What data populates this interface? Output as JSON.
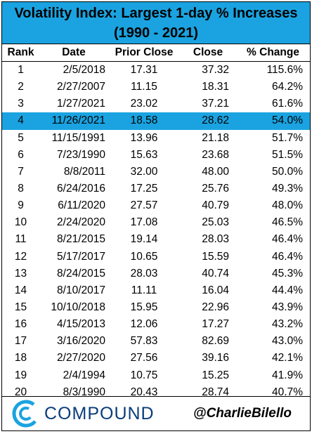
{
  "chart_data": {
    "type": "table",
    "title_line1": "Volatility Index: Largest 1-day % Increases",
    "title_line2": "(1990 - 2021)",
    "columns": [
      "Rank",
      "Date",
      "Prior Close",
      "Close",
      "% Change"
    ],
    "highlight_rank": "4",
    "highlight_color": "#1aa3e0",
    "rows": [
      [
        "1",
        "2/5/2018",
        "17.31",
        "37.32",
        "115.6%"
      ],
      [
        "2",
        "2/27/2007",
        "11.15",
        "18.31",
        "64.2%"
      ],
      [
        "3",
        "1/27/2021",
        "23.02",
        "37.21",
        "61.6%"
      ],
      [
        "4",
        "11/26/2021",
        "18.58",
        "28.62",
        "54.0%"
      ],
      [
        "5",
        "11/15/1991",
        "13.96",
        "21.18",
        "51.7%"
      ],
      [
        "6",
        "7/23/1990",
        "15.63",
        "23.68",
        "51.5%"
      ],
      [
        "7",
        "8/8/2011",
        "32.00",
        "48.00",
        "50.0%"
      ],
      [
        "8",
        "6/24/2016",
        "17.25",
        "25.76",
        "49.3%"
      ],
      [
        "9",
        "6/11/2020",
        "27.57",
        "40.79",
        "48.0%"
      ],
      [
        "10",
        "2/24/2020",
        "17.08",
        "25.03",
        "46.5%"
      ],
      [
        "11",
        "8/21/2015",
        "19.14",
        "28.03",
        "46.4%"
      ],
      [
        "12",
        "5/17/2017",
        "10.65",
        "15.59",
        "46.4%"
      ],
      [
        "13",
        "8/24/2015",
        "28.03",
        "40.74",
        "45.3%"
      ],
      [
        "14",
        "8/10/2017",
        "11.11",
        "16.04",
        "44.4%"
      ],
      [
        "15",
        "10/10/2018",
        "15.95",
        "22.96",
        "43.9%"
      ],
      [
        "16",
        "4/15/2013",
        "12.06",
        "17.27",
        "43.2%"
      ],
      [
        "17",
        "3/16/2020",
        "57.83",
        "82.69",
        "43.0%"
      ],
      [
        "18",
        "2/27/2020",
        "27.56",
        "39.16",
        "42.1%"
      ],
      [
        "19",
        "2/4/1994",
        "10.75",
        "15.25",
        "41.9%"
      ],
      [
        "20",
        "8/3/1990",
        "20.43",
        "28.74",
        "40.7%"
      ]
    ]
  },
  "footer": {
    "logo_text": "COMPOUND",
    "logo_icon": "compound-c-icon",
    "handle": "@CharlieBilello"
  },
  "colors": {
    "title_bg": "#1aa3e0",
    "logo_blue": "#1aa3e0",
    "logo_text": "#0a3d7a"
  }
}
